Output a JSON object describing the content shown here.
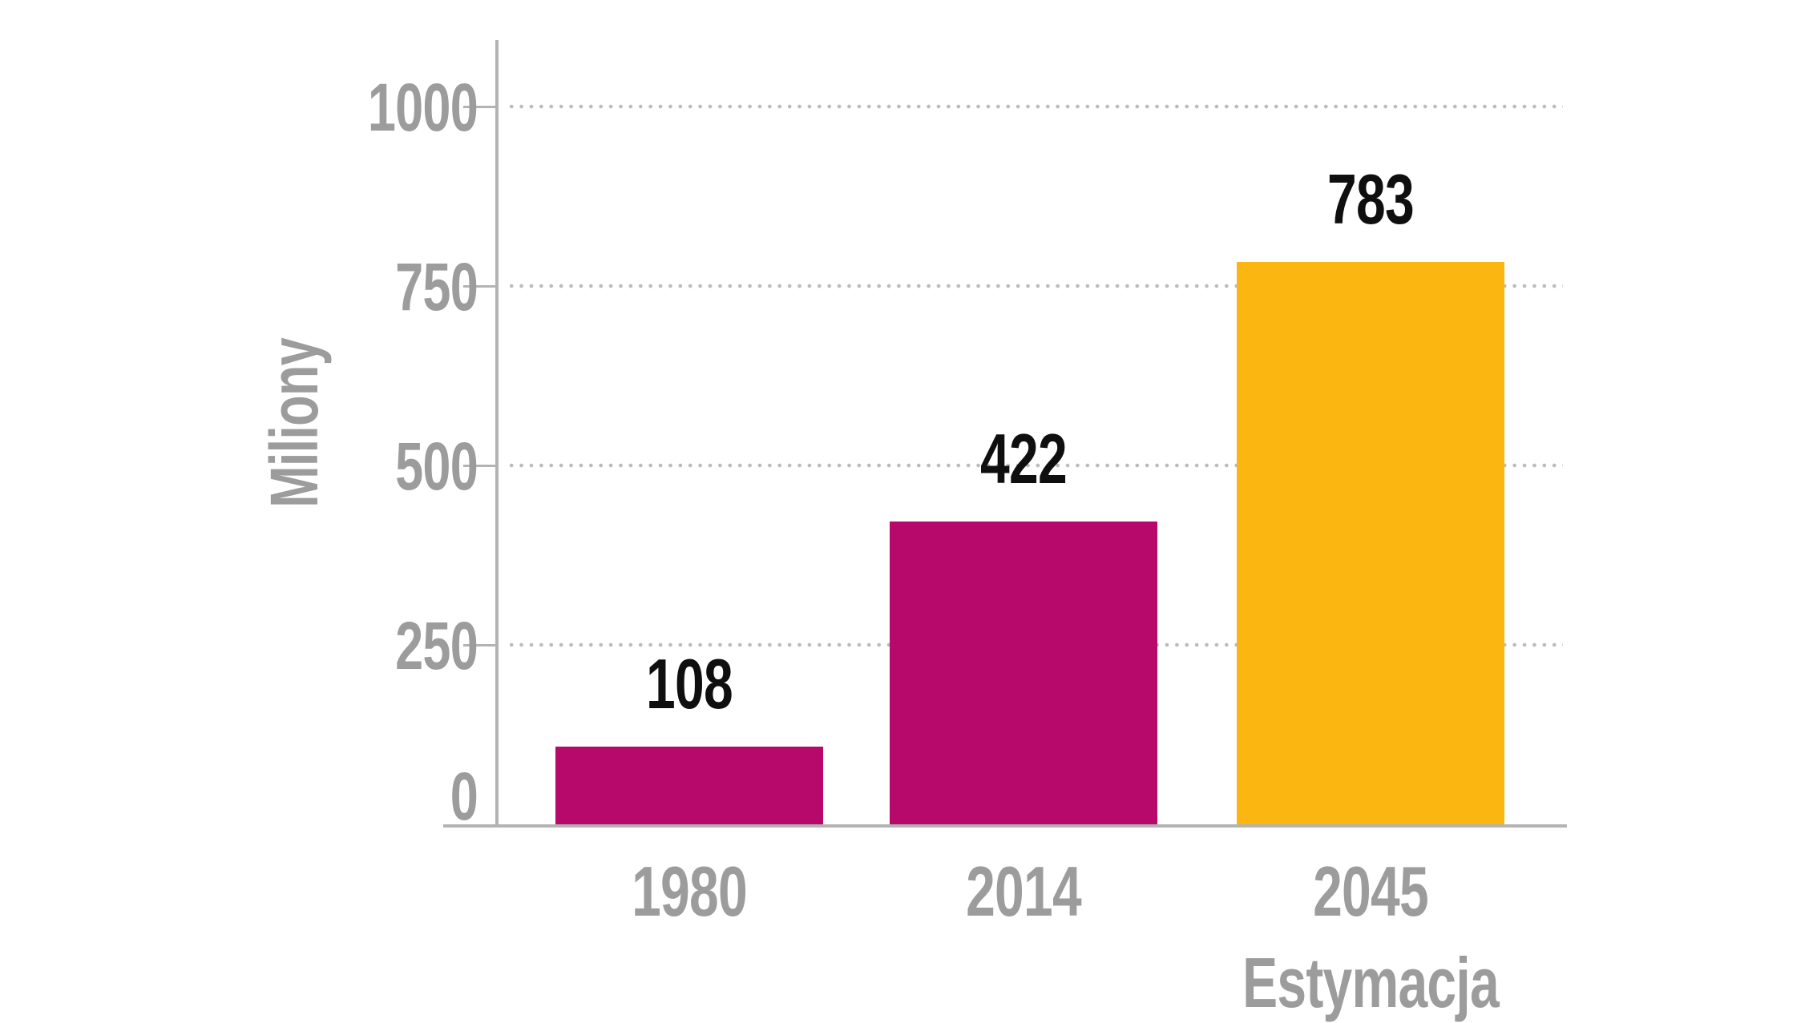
{
  "chart_data": {
    "type": "bar",
    "title": "",
    "categories": [
      "1980",
      "2014",
      "2045\nEstymacja"
    ],
    "values": [
      108,
      422,
      783
    ],
    "value_labels": [
      "108",
      "422",
      "783"
    ],
    "bar_colors": [
      "#b7096b",
      "#b7096b",
      "#fbb612"
    ],
    "ylabel": "Miliony",
    "xlabel": "",
    "yticks": [
      0,
      250,
      500,
      750,
      1000
    ],
    "ylim": [
      0,
      1000
    ],
    "grid": {
      "horizontal": true,
      "style": "dotted",
      "vertical": false
    },
    "legend_position": "none",
    "colors": {
      "magenta_bar": "#b7096b",
      "orange_bar": "#fbb612",
      "axis": "#b3b3b3",
      "grid_dots": "#bbbbbb",
      "tick_labels": "#9c9c9c",
      "category_labels": "#9c9c9c",
      "value_labels": "#0f0f0f",
      "background": "#ffffff"
    }
  }
}
